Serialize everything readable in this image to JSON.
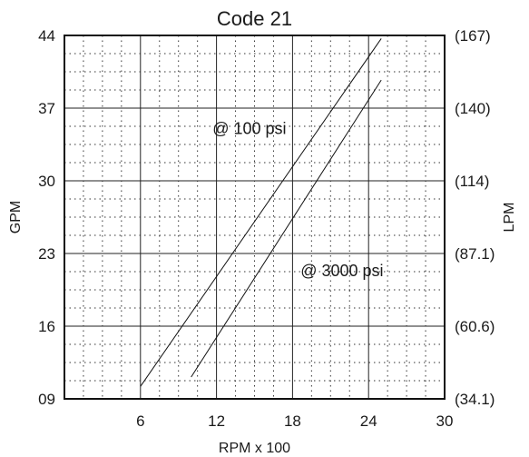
{
  "chart_data": {
    "type": "line",
    "title": "Code 21",
    "xlabel": "RPM x 100",
    "ylabel": "GPM",
    "y2label": "LPM",
    "xlim": [
      0,
      30
    ],
    "ylim": [
      9,
      44
    ],
    "x_ticks": [
      {
        "value": 6,
        "label": "6"
      },
      {
        "value": 12,
        "label": "12"
      },
      {
        "value": 18,
        "label": "18"
      },
      {
        "value": 24,
        "label": "24"
      },
      {
        "value": 30,
        "label": "30"
      }
    ],
    "y_ticks": [
      {
        "value": 9,
        "label": "09"
      },
      {
        "value": 16,
        "label": "16"
      },
      {
        "value": 23,
        "label": "23"
      },
      {
        "value": 30,
        "label": "30"
      },
      {
        "value": 37,
        "label": "37"
      },
      {
        "value": 44,
        "label": "44"
      }
    ],
    "y2_ticks": [
      {
        "value": 9,
        "label": "(34.1)"
      },
      {
        "value": 16,
        "label": "(60.6)"
      },
      {
        "value": 23,
        "label": "(87.1)"
      },
      {
        "value": 30,
        "label": "(114)"
      },
      {
        "value": 37,
        "label": "(140)"
      },
      {
        "value": 44,
        "label": "(167)"
      }
    ],
    "grid": true,
    "series": [
      {
        "name": "@ 100 psi",
        "x": [
          6,
          25
        ],
        "y": [
          10.2,
          43.7
        ]
      },
      {
        "name": "@ 3000 psi",
        "x": [
          10,
          25
        ],
        "y": [
          11.1,
          39.7
        ]
      }
    ],
    "annotations": [
      {
        "text": "@ 100 psi",
        "x": 14.6,
        "y": 34.5
      },
      {
        "text": "@ 3000 psi",
        "x": 21.9,
        "y": 20.8
      }
    ]
  }
}
